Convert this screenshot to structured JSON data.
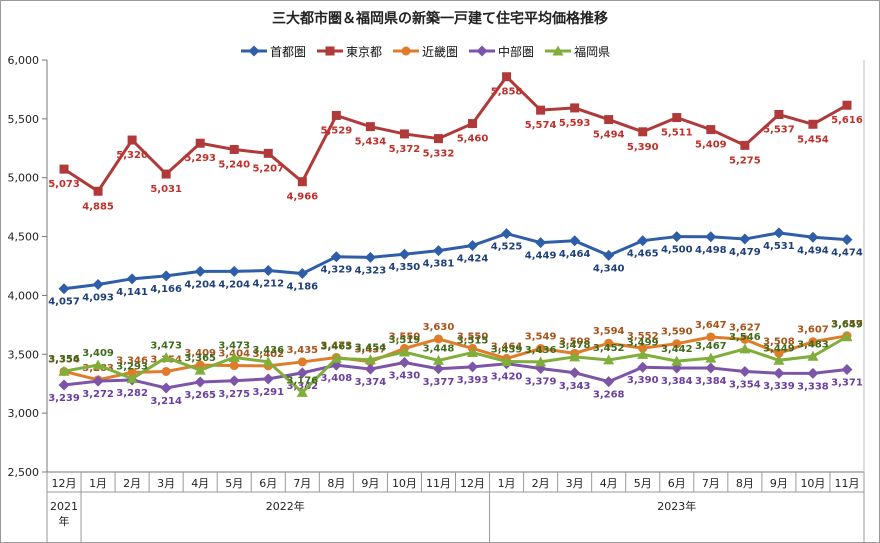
{
  "chart_data": {
    "type": "line",
    "title": "三大都市圏＆福岡県の新築一戸建て住宅平均価格推移",
    "categories": [
      "12月",
      "1月",
      "2月",
      "3月",
      "4月",
      "5月",
      "6月",
      "7月",
      "8月",
      "9月",
      "10月",
      "11月",
      "12月",
      "1月",
      "2月",
      "3月",
      "4月",
      "5月",
      "6月",
      "7月",
      "8月",
      "9月",
      "10月",
      "11月"
    ],
    "year_groups": [
      {
        "label": "2021年",
        "start": 0,
        "end": 0
      },
      {
        "label": "2022年",
        "start": 1,
        "end": 12
      },
      {
        "label": "2023年",
        "start": 13,
        "end": 23
      }
    ],
    "ylim": [
      2500,
      6000
    ],
    "yticks": [
      "2,500",
      "3,000",
      "3,500",
      "4,000",
      "4,500",
      "5,000",
      "5,500",
      "6,000"
    ],
    "ytick_values": [
      2500,
      3000,
      3500,
      4000,
      4500,
      5000,
      5500,
      6000
    ],
    "grid": false,
    "legend_position": "top",
    "series": [
      {
        "name": "首都圏",
        "color": "#2e5ea8",
        "marker": "diamond",
        "label_color": "#1f3f7a",
        "values": [
          4057,
          4093,
          4141,
          4166,
          4204,
          4204,
          4212,
          4186,
          4329,
          4323,
          4350,
          4381,
          4424,
          4525,
          4449,
          4464,
          4340,
          4465,
          4500,
          4498,
          4479,
          4531,
          4494,
          4474
        ],
        "labels": [
          "4,057",
          "4,093",
          "4,141",
          "4,166",
          "4,204",
          "4,204",
          "4,212",
          "4,186",
          "4,329",
          "4,323",
          "4,350",
          "4,381",
          "4,424",
          "4,525",
          "4,449",
          "4,464",
          "4,340",
          "4,465",
          "4,500",
          "4,498",
          "4,479",
          "4,531",
          "4,494",
          "4,474"
        ]
      },
      {
        "name": "東京都",
        "color": "#b03a3a",
        "marker": "square",
        "label_color": "#c0302a",
        "values": [
          5073,
          4885,
          5320,
          5031,
          5293,
          5240,
          5207,
          4966,
          5529,
          5434,
          5372,
          5332,
          5460,
          5858,
          5574,
          5593,
          5494,
          5390,
          5511,
          5409,
          5275,
          5537,
          5454,
          5616
        ],
        "labels": [
          "5,073",
          "4,885",
          "5,320",
          "5,031",
          "5,293",
          "5,240",
          "5,207",
          "4,966",
          "5,529",
          "5,434",
          "5,372",
          "5,332",
          "5,460",
          "5,858",
          "5,574",
          "5,593",
          "5,494",
          "5,390",
          "5,511",
          "5,409",
          "5,275",
          "5,537",
          "5,454",
          "5,616"
        ]
      },
      {
        "name": "近畿圏",
        "color": "#e07b2a",
        "marker": "circle",
        "label_color": "#a8531a",
        "values": [
          3354,
          3283,
          3346,
          3354,
          3409,
          3404,
          3402,
          3435,
          3473,
          3437,
          3550,
          3630,
          3550,
          3464,
          3549,
          3508,
          3594,
          3552,
          3590,
          3647,
          3627,
          3508,
          3607,
          3657
        ],
        "labels": [
          "3,354",
          "3,283",
          "3,346",
          "3,354",
          "3,409",
          "3,404",
          "3,402",
          "3,435",
          "3,473",
          "3,437",
          "3,550",
          "3,630",
          "3,550",
          "3,464",
          "3,549",
          "3,508",
          "3,594",
          "3,552",
          "3,590",
          "3,647",
          "3,627",
          "3,508",
          "3,607",
          "3,657"
        ]
      },
      {
        "name": "中部圏",
        "color": "#7d55a8",
        "marker": "diamond",
        "label_color": "#6a3fa0",
        "values": [
          3239,
          3272,
          3282,
          3214,
          3265,
          3275,
          3291,
          3342,
          3408,
          3374,
          3430,
          3377,
          3393,
          3420,
          3379,
          3343,
          3268,
          3390,
          3384,
          3384,
          3354,
          3339,
          3338,
          3371
        ],
        "labels": [
          "3,239",
          "3,272",
          "3,282",
          "3,214",
          "3,265",
          "3,275",
          "3,291",
          "3,342",
          "3,408",
          "3,374",
          "3,430",
          "3,377",
          "3,393",
          "3,420",
          "3,379",
          "3,343",
          "3,268",
          "3,390",
          "3,384",
          "3,384",
          "3,354",
          "3,339",
          "3,338",
          "3,371"
        ]
      },
      {
        "name": "福岡県",
        "color": "#7fae3a",
        "marker": "triangle",
        "label_color": "#3f6a1a",
        "values": [
          3356,
          3409,
          3293,
          3473,
          3365,
          3473,
          3436,
          3176,
          3465,
          3454,
          3519,
          3448,
          3515,
          3439,
          3436,
          3478,
          3452,
          3499,
          3442,
          3467,
          3546,
          3449,
          3483,
          3649
        ],
        "labels": [
          "3,356",
          "3,409",
          "3,293",
          "3,473",
          "3,365",
          "3,473",
          "3,436",
          "3,176",
          "3,465",
          "3,454",
          "3,519",
          "3,448",
          "3,515",
          "3,439",
          "3,436",
          "3,478",
          "3,452",
          "3,499",
          "3,442",
          "3,467",
          "3,546",
          "3,449",
          "3,483",
          "3,649"
        ]
      }
    ]
  }
}
